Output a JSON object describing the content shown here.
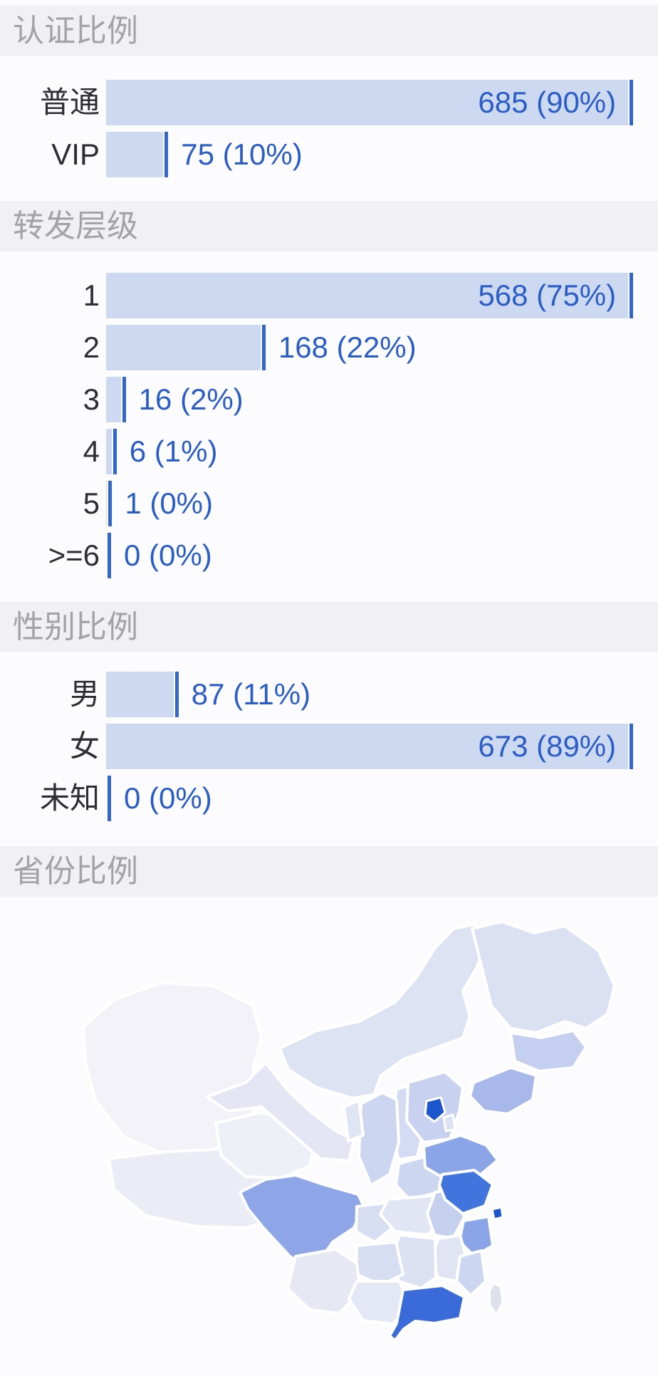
{
  "page": {
    "background": "#fcfbfd",
    "strip_background": "#f1f0f3",
    "strip_text_color": "#a3a3a7"
  },
  "bar_style": {
    "fill": "#cdd8f1",
    "end_line_color": "#3465c8",
    "value_text_color": "#2b5dc7",
    "category_text_color": "#2e2e32"
  },
  "chart_data": [
    {
      "type": "bar",
      "orientation": "horizontal",
      "title": "认证比例",
      "categories": [
        "普通",
        "VIP"
      ],
      "values": [
        685,
        75
      ],
      "percents": [
        90,
        10
      ],
      "value_labels": [
        "685 (90%)",
        "75 (10%)"
      ],
      "xlabel": "",
      "ylabel": "",
      "grid": false,
      "legend": "none"
    },
    {
      "type": "bar",
      "orientation": "horizontal",
      "title": "转发层级",
      "categories": [
        "1",
        "2",
        "3",
        "4",
        "5",
        ">=6"
      ],
      "values": [
        568,
        168,
        16,
        6,
        1,
        0
      ],
      "percents": [
        75,
        22,
        2,
        1,
        0,
        0
      ],
      "value_labels": [
        "568 (75%)",
        "168 (22%)",
        "16 (2%)",
        "6 (1%)",
        "1 (0%)",
        "0 (0%)"
      ],
      "xlabel": "",
      "ylabel": "",
      "grid": false,
      "legend": "none"
    },
    {
      "type": "bar",
      "orientation": "horizontal",
      "title": "性别比例",
      "categories": [
        "男",
        "女",
        "未知"
      ],
      "values": [
        87,
        673,
        0
      ],
      "percents": [
        11,
        89,
        0
      ],
      "value_labels": [
        "87 (11%)",
        "673 (89%)",
        "0 (0%)"
      ],
      "xlabel": "",
      "ylabel": "",
      "grid": false,
      "legend": "none"
    },
    {
      "type": "heatmap",
      "subtype": "china-choropleth",
      "title": "省份比例",
      "note": "province shading from light (few) to dark blue (many); values encoded by color only",
      "regions": [
        {
          "id": "xinjiang",
          "name": "新疆",
          "color": "#f2f2f8"
        },
        {
          "id": "xizang",
          "name": "西藏",
          "color": "#ebecf5"
        },
        {
          "id": "qinghai",
          "name": "青海",
          "color": "#eef0f7"
        },
        {
          "id": "gansu",
          "name": "甘肃",
          "color": "#e4e7f3"
        },
        {
          "id": "neimenggu",
          "name": "内蒙古",
          "color": "#dee3f3"
        },
        {
          "id": "heilongjiang",
          "name": "黑龙江",
          "color": "#dbe1f3"
        },
        {
          "id": "jilin",
          "name": "吉林",
          "color": "#c5cff0"
        },
        {
          "id": "liaoning",
          "name": "辽宁",
          "color": "#a9b8eb"
        },
        {
          "id": "shanxi",
          "name": "山西",
          "color": "#d4dbf2"
        },
        {
          "id": "hebei",
          "name": "河北",
          "color": "#c8d2f0"
        },
        {
          "id": "beijing",
          "name": "北京",
          "color": "#1c56cd"
        },
        {
          "id": "tianjin",
          "name": "天津",
          "color": "#dbe2f3"
        },
        {
          "id": "shaanxi",
          "name": "陕西",
          "color": "#ccd6f1"
        },
        {
          "id": "ningxia",
          "name": "宁夏",
          "color": "#e0e5f4"
        },
        {
          "id": "sichuan",
          "name": "四川",
          "color": "#8ea6e8"
        },
        {
          "id": "chongqing",
          "name": "重庆",
          "color": "#d8def2"
        },
        {
          "id": "henan",
          "name": "河南",
          "color": "#ccd6f1"
        },
        {
          "id": "hubei",
          "name": "湖北",
          "color": "#e2e6f4"
        },
        {
          "id": "anhui",
          "name": "安徽",
          "color": "#c5cfee"
        },
        {
          "id": "shandong",
          "name": "山东",
          "color": "#8ba3e7"
        },
        {
          "id": "jiangsu",
          "name": "江苏",
          "color": "#4174dc"
        },
        {
          "id": "shanghai",
          "name": "上海",
          "color": "#1c56cd"
        },
        {
          "id": "zhejiang",
          "name": "浙江",
          "color": "#8aa4e7"
        },
        {
          "id": "jiangxi",
          "name": "江西",
          "color": "#e0e4f3"
        },
        {
          "id": "hunan",
          "name": "湖南",
          "color": "#dde2f3"
        },
        {
          "id": "guizhou",
          "name": "贵州",
          "color": "#d8def2"
        },
        {
          "id": "yunnan",
          "name": "云南",
          "color": "#e6e9f4"
        },
        {
          "id": "guangxi",
          "name": "广西",
          "color": "#e4e8f4"
        },
        {
          "id": "fujian",
          "name": "福建",
          "color": "#ccd6f0"
        },
        {
          "id": "guangdong",
          "name": "广东",
          "color": "#3b6bd8"
        },
        {
          "id": "taiwan",
          "name": "台湾",
          "color": "#dfe2ed"
        }
      ]
    }
  ]
}
